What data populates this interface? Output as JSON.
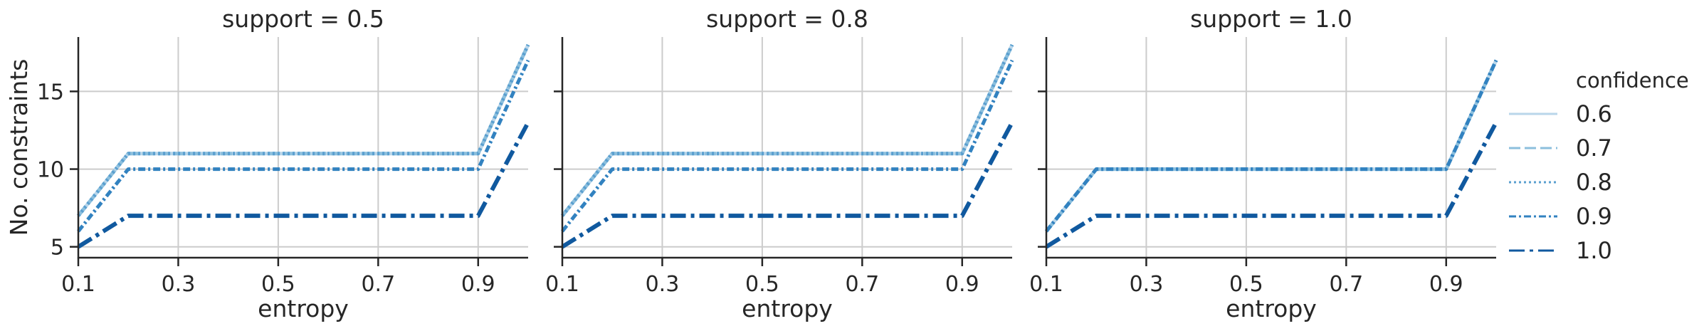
{
  "chart_data": [
    {
      "type": "line",
      "title": "support = 0.5",
      "xlabel": "entropy",
      "ylabel": "No. constraints",
      "x_tick_labels": [
        "0.1",
        "0.3",
        "0.5",
        "0.7",
        "0.9"
      ],
      "y_tick_labels": [
        "5",
        "10",
        "15"
      ],
      "xlim": [
        0.1,
        1.0
      ],
      "ylim": [
        4.3,
        18.5
      ],
      "grid": true,
      "x": [
        0.1,
        0.2,
        0.9,
        1.0
      ],
      "series": [
        {
          "name": "0.6",
          "values": [
            7,
            11,
            11,
            18
          ]
        },
        {
          "name": "0.7",
          "values": [
            7,
            11,
            11,
            18
          ]
        },
        {
          "name": "0.8",
          "values": [
            7,
            11,
            11,
            18
          ]
        },
        {
          "name": "0.9",
          "values": [
            6,
            10,
            10,
            17
          ]
        },
        {
          "name": "1.0",
          "values": [
            5,
            7,
            7,
            13
          ]
        }
      ]
    },
    {
      "type": "line",
      "title": "support = 0.8",
      "xlabel": "entropy",
      "ylabel": "",
      "x_tick_labels": [
        "0.1",
        "0.3",
        "0.5",
        "0.7",
        "0.9"
      ],
      "y_tick_labels": [
        "5",
        "10",
        "15"
      ],
      "xlim": [
        0.1,
        1.0
      ],
      "ylim": [
        4.3,
        18.5
      ],
      "grid": true,
      "x": [
        0.1,
        0.2,
        0.9,
        1.0
      ],
      "series": [
        {
          "name": "0.6",
          "values": [
            7,
            11,
            11,
            18
          ]
        },
        {
          "name": "0.7",
          "values": [
            7,
            11,
            11,
            18
          ]
        },
        {
          "name": "0.8",
          "values": [
            7,
            11,
            11,
            18
          ]
        },
        {
          "name": "0.9",
          "values": [
            6,
            10,
            10,
            17
          ]
        },
        {
          "name": "1.0",
          "values": [
            5,
            7,
            7,
            13
          ]
        }
      ]
    },
    {
      "type": "line",
      "title": "support = 1.0",
      "xlabel": "entropy",
      "ylabel": "",
      "x_tick_labels": [
        "0.1",
        "0.3",
        "0.5",
        "0.7",
        "0.9"
      ],
      "y_tick_labels": [
        "5",
        "10",
        "15"
      ],
      "xlim": [
        0.1,
        1.0
      ],
      "ylim": [
        4.3,
        18.5
      ],
      "grid": true,
      "x": [
        0.1,
        0.2,
        0.9,
        1.0
      ],
      "series": [
        {
          "name": "0.6",
          "values": [
            6,
            10,
            10,
            17
          ]
        },
        {
          "name": "0.7",
          "values": [
            6,
            10,
            10,
            17
          ]
        },
        {
          "name": "0.8",
          "values": [
            6,
            10,
            10,
            17
          ]
        },
        {
          "name": "0.9",
          "values": [
            6,
            10,
            10,
            17
          ]
        },
        {
          "name": "1.0",
          "values": [
            5,
            7,
            7,
            13
          ]
        }
      ]
    }
  ],
  "legend": {
    "title": "confidence",
    "placement": "right",
    "entries": [
      {
        "label": "0.6",
        "color": "#b9d6ea",
        "dash": "solid"
      },
      {
        "label": "0.7",
        "color": "#8cbfdd",
        "dash": "dashed"
      },
      {
        "label": "0.8",
        "color": "#5a9fcf",
        "dash": "dotted"
      },
      {
        "label": "0.9",
        "color": "#3282c0",
        "dash": "dashdot-short"
      },
      {
        "label": "1.0",
        "color": "#10599f",
        "dash": "dashdot"
      }
    ]
  },
  "colors": {
    "axis": "#262626",
    "grid": "#cccccc",
    "text": "#262626"
  }
}
